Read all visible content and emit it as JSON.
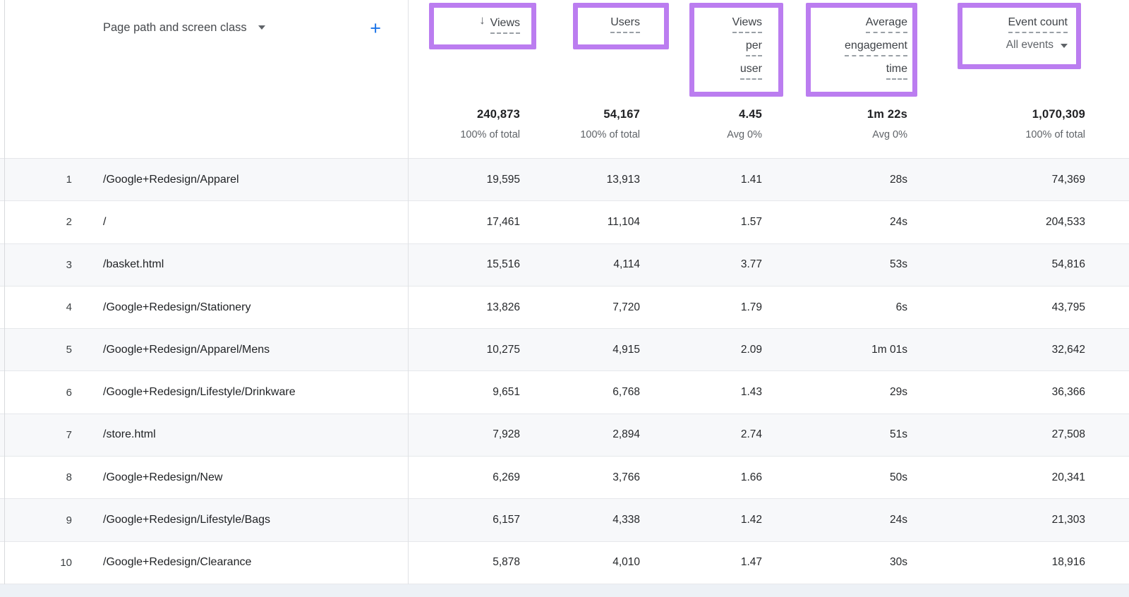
{
  "colors": {
    "annotation_highlight": "#bb7df0",
    "accent_blue": "#1a73e8",
    "row_stripe": "#f7f8fa"
  },
  "icons": {
    "sort_descending": "↓",
    "add": "+",
    "dropdown_caret": "dropdown-triangle"
  },
  "table": {
    "dimension_header": {
      "label": "Page path and screen class"
    },
    "columns": {
      "views": {
        "label": "Views",
        "sorted_descending": true
      },
      "users": {
        "label": "Users"
      },
      "views_per_user": {
        "lines": [
          "Views",
          "per",
          "user"
        ]
      },
      "avg_engagement_time": {
        "lines": [
          "Average",
          "engagement",
          "time"
        ]
      },
      "event_count": {
        "label": "Event count",
        "sub_label": "All events"
      }
    },
    "totals": {
      "views": {
        "value": "240,873",
        "sub": "100% of total"
      },
      "users": {
        "value": "54,167",
        "sub": "100% of total"
      },
      "views_per_user": {
        "value": "4.45",
        "sub": "Avg 0%"
      },
      "avg_engagement_time": {
        "value": "1m 22s",
        "sub": "Avg 0%"
      },
      "event_count": {
        "value": "1,070,309",
        "sub": "100% of total"
      }
    },
    "rows": [
      {
        "index": "1",
        "page_path": "/Google+Redesign/Apparel",
        "views": "19,595",
        "users": "13,913",
        "views_per_user": "1.41",
        "avg_engagement_time": "28s",
        "event_count": "74,369"
      },
      {
        "index": "2",
        "page_path": "/",
        "views": "17,461",
        "users": "11,104",
        "views_per_user": "1.57",
        "avg_engagement_time": "24s",
        "event_count": "204,533"
      },
      {
        "index": "3",
        "page_path": "/basket.html",
        "views": "15,516",
        "users": "4,114",
        "views_per_user": "3.77",
        "avg_engagement_time": "53s",
        "event_count": "54,816"
      },
      {
        "index": "4",
        "page_path": "/Google+Redesign/Stationery",
        "views": "13,826",
        "users": "7,720",
        "views_per_user": "1.79",
        "avg_engagement_time": "6s",
        "event_count": "43,795"
      },
      {
        "index": "5",
        "page_path": "/Google+Redesign/Apparel/Mens",
        "views": "10,275",
        "users": "4,915",
        "views_per_user": "2.09",
        "avg_engagement_time": "1m 01s",
        "event_count": "32,642"
      },
      {
        "index": "6",
        "page_path": "/Google+Redesign/Lifestyle/Drinkware",
        "views": "9,651",
        "users": "6,768",
        "views_per_user": "1.43",
        "avg_engagement_time": "29s",
        "event_count": "36,366"
      },
      {
        "index": "7",
        "page_path": "/store.html",
        "views": "7,928",
        "users": "2,894",
        "views_per_user": "2.74",
        "avg_engagement_time": "51s",
        "event_count": "27,508"
      },
      {
        "index": "8",
        "page_path": "/Google+Redesign/New",
        "views": "6,269",
        "users": "3,766",
        "views_per_user": "1.66",
        "avg_engagement_time": "50s",
        "event_count": "20,341"
      },
      {
        "index": "9",
        "page_path": "/Google+Redesign/Lifestyle/Bags",
        "views": "6,157",
        "users": "4,338",
        "views_per_user": "1.42",
        "avg_engagement_time": "24s",
        "event_count": "21,303"
      },
      {
        "index": "10",
        "page_path": "/Google+Redesign/Clearance",
        "views": "5,878",
        "users": "4,010",
        "views_per_user": "1.47",
        "avg_engagement_time": "30s",
        "event_count": "18,916"
      }
    ]
  }
}
